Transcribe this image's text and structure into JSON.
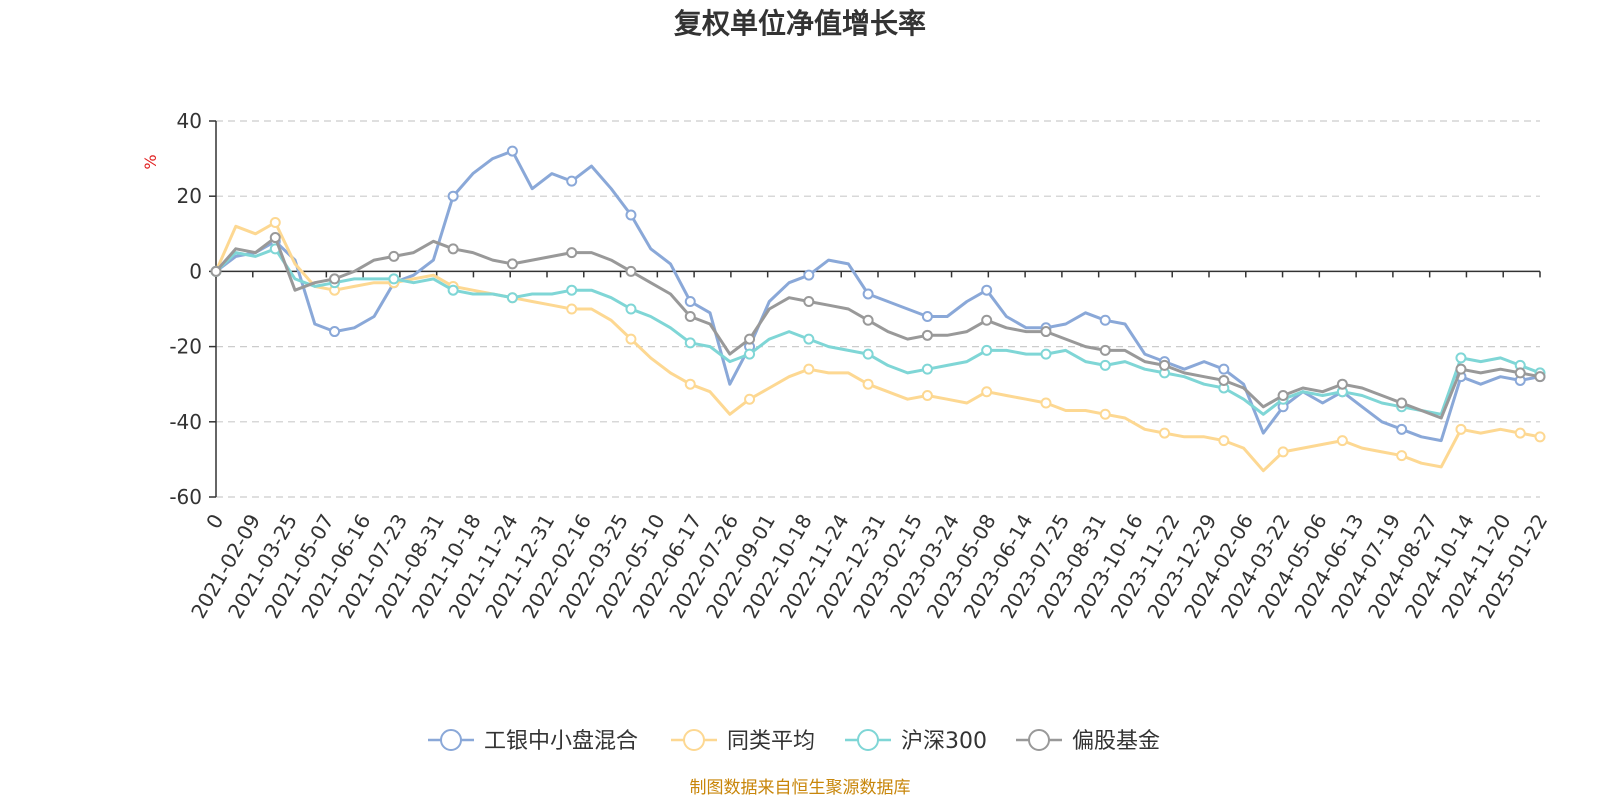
{
  "chart_data": {
    "type": "line",
    "title": "复权单位净值增长率",
    "y_unit": "%",
    "ylim": [
      -60,
      40
    ],
    "y_ticks": [
      40,
      20,
      0,
      -20,
      -40,
      -60
    ],
    "grid": true,
    "legend_position": "bottom-center",
    "x_tick_labels": [
      "0",
      "2021-02-09",
      "2021-03-25",
      "2021-05-07",
      "2021-06-16",
      "2021-07-23",
      "2021-08-31",
      "2021-10-18",
      "2021-11-24",
      "2021-12-31",
      "2022-02-16",
      "2022-03-25",
      "2022-05-10",
      "2022-06-17",
      "2022-07-26",
      "2022-09-01",
      "2022-10-18",
      "2022-11-24",
      "2022-12-31",
      "2023-02-15",
      "2023-03-24",
      "2023-05-08",
      "2023-06-14",
      "2023-07-25",
      "2023-08-31",
      "2023-10-16",
      "2023-11-22",
      "2023-12-29",
      "2024-02-06",
      "2024-03-22",
      "2024-05-06",
      "2024-06-13",
      "2024-07-19",
      "2024-08-27",
      "2024-10-14",
      "2024-11-20",
      "2025-01-22"
    ],
    "series": [
      {
        "name": "工银中小盘混合",
        "color": "#8aa8d8",
        "values": [
          0,
          4,
          5,
          8,
          3,
          -14,
          -16,
          -15,
          -12,
          -3,
          -1,
          3,
          20,
          26,
          30,
          32,
          22,
          26,
          24,
          28,
          22,
          15,
          6,
          2,
          -8,
          -11,
          -30,
          -20,
          -8,
          -3,
          -1,
          3,
          2,
          -6,
          -8,
          -10,
          -12,
          -12,
          -8,
          -5,
          -12,
          -15,
          -15,
          -14,
          -11,
          -13,
          -14,
          -22,
          -24,
          -26,
          -24,
          -26,
          -30,
          -43,
          -36,
          -32,
          -35,
          -32,
          -36,
          -40,
          -42,
          -44,
          -45,
          -28,
          -30,
          -28,
          -29,
          -28
        ]
      },
      {
        "name": "同类平均",
        "color": "#fdd892",
        "values": [
          0,
          12,
          10,
          13,
          2,
          -4,
          -5,
          -4,
          -3,
          -3,
          -2,
          -1,
          -4,
          -5,
          -6,
          -7,
          -8,
          -9,
          -10,
          -10,
          -13,
          -18,
          -23,
          -27,
          -30,
          -32,
          -38,
          -34,
          -31,
          -28,
          -26,
          -27,
          -27,
          -30,
          -32,
          -34,
          -33,
          -34,
          -35,
          -32,
          -33,
          -34,
          -35,
          -37,
          -37,
          -38,
          -39,
          -42,
          -43,
          -44,
          -44,
          -45,
          -47,
          -53,
          -48,
          -47,
          -46,
          -45,
          -47,
          -48,
          -49,
          -51,
          -52,
          -42,
          -43,
          -42,
          -43,
          -44
        ]
      },
      {
        "name": "沪深300",
        "color": "#7fd6d6",
        "values": [
          0,
          5,
          4,
          6,
          -2,
          -4,
          -3,
          -2,
          -2,
          -2,
          -3,
          -2,
          -5,
          -6,
          -6,
          -7,
          -6,
          -6,
          -5,
          -5,
          -7,
          -10,
          -12,
          -15,
          -19,
          -20,
          -24,
          -22,
          -18,
          -16,
          -18,
          -20,
          -21,
          -22,
          -25,
          -27,
          -26,
          -25,
          -24,
          -21,
          -21,
          -22,
          -22,
          -21,
          -24,
          -25,
          -24,
          -26,
          -27,
          -28,
          -30,
          -31,
          -34,
          -38,
          -34,
          -32,
          -33,
          -32,
          -33,
          -35,
          -36,
          -37,
          -38,
          -23,
          -24,
          -23,
          -25,
          -27
        ]
      },
      {
        "name": "偏股基金",
        "color": "#999999",
        "values": [
          0,
          6,
          5,
          9,
          -5,
          -3,
          -2,
          0,
          3,
          4,
          5,
          8,
          6,
          5,
          3,
          2,
          3,
          4,
          5,
          5,
          3,
          0,
          -3,
          -6,
          -12,
          -14,
          -22,
          -18,
          -10,
          -7,
          -8,
          -9,
          -10,
          -13,
          -16,
          -18,
          -17,
          -17,
          -16,
          -13,
          -15,
          -16,
          -16,
          -18,
          -20,
          -21,
          -21,
          -24,
          -25,
          -27,
          -28,
          -29,
          -31,
          -36,
          -33,
          -31,
          -32,
          -30,
          -31,
          -33,
          -35,
          -37,
          -39,
          -26,
          -27,
          -26,
          -27,
          -28
        ]
      }
    ]
  },
  "legend": {
    "items": [
      "工银中小盘混合",
      "同类平均",
      "沪深300",
      "偏股基金"
    ]
  },
  "source_text": "制图数据来自恒生聚源数据库"
}
